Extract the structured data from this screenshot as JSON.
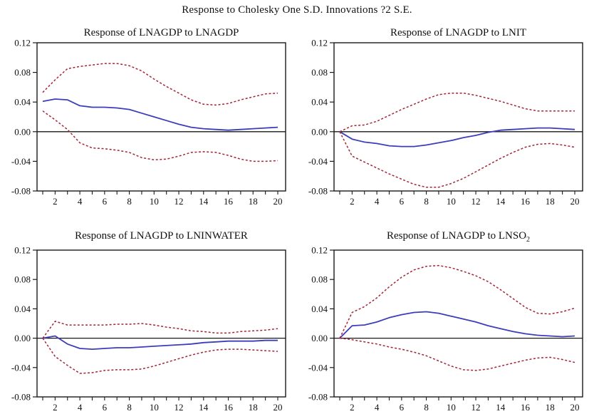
{
  "title": "Response to Cholesky One S.D. Innovations ?2 S.E.",
  "colors": {
    "response_line": "#3d3dbb",
    "band_line": "#a32638",
    "axis": "#1a1a1a",
    "background": "#ffffff"
  },
  "chart_data": [
    {
      "type": "line",
      "title": "Response of LNAGDP to LNAGDP",
      "title_sub": "",
      "x": [
        1,
        2,
        3,
        4,
        5,
        6,
        7,
        8,
        9,
        10,
        11,
        12,
        13,
        14,
        15,
        16,
        17,
        18,
        19,
        20
      ],
      "xticks": [
        2,
        4,
        6,
        8,
        10,
        12,
        14,
        16,
        18,
        20
      ],
      "yticks": [
        "0.12",
        "0.08",
        "0.04",
        "0.00",
        "-0.04",
        "-0.08"
      ],
      "ylim": [
        -0.08,
        0.12
      ],
      "grid": false,
      "legend": "none",
      "series": [
        {
          "name": "response",
          "key": "response-line",
          "style": "solid",
          "color": "#3d3dbb",
          "values": [
            0.041,
            0.044,
            0.043,
            0.035,
            0.033,
            0.033,
            0.032,
            0.03,
            0.025,
            0.02,
            0.015,
            0.01,
            0.006,
            0.004,
            0.003,
            0.002,
            0.003,
            0.004,
            0.005,
            0.006
          ]
        },
        {
          "name": "upper 2 S.E. band",
          "key": "upper-band",
          "style": "dashed",
          "color": "#a32638",
          "values": [
            0.053,
            0.07,
            0.085,
            0.088,
            0.09,
            0.092,
            0.092,
            0.089,
            0.082,
            0.071,
            0.061,
            0.052,
            0.043,
            0.037,
            0.036,
            0.038,
            0.043,
            0.047,
            0.051,
            0.052
          ]
        },
        {
          "name": "lower 2 S.E. band",
          "key": "lower-band",
          "style": "dashed",
          "color": "#a32638",
          "values": [
            0.028,
            0.016,
            0.003,
            -0.015,
            -0.022,
            -0.023,
            -0.025,
            -0.028,
            -0.035,
            -0.038,
            -0.037,
            -0.033,
            -0.028,
            -0.027,
            -0.028,
            -0.032,
            -0.037,
            -0.04,
            -0.04,
            -0.039
          ]
        }
      ]
    },
    {
      "type": "line",
      "title": "Response of LNAGDP to LNIT",
      "title_sub": "",
      "x": [
        1,
        2,
        3,
        4,
        5,
        6,
        7,
        8,
        9,
        10,
        11,
        12,
        13,
        14,
        15,
        16,
        17,
        18,
        19,
        20
      ],
      "xticks": [
        2,
        4,
        6,
        8,
        10,
        12,
        14,
        16,
        18,
        20
      ],
      "yticks": [
        "0.12",
        "0.08",
        "0.04",
        "0.00",
        "-0.04",
        "-0.08"
      ],
      "ylim": [
        -0.08,
        0.12
      ],
      "grid": false,
      "legend": "none",
      "series": [
        {
          "name": "response",
          "key": "response-line",
          "style": "solid",
          "color": "#3d3dbb",
          "values": [
            0.0,
            -0.01,
            -0.014,
            -0.016,
            -0.019,
            -0.02,
            -0.02,
            -0.018,
            -0.015,
            -0.012,
            -0.008,
            -0.005,
            -0.001,
            0.002,
            0.003,
            0.004,
            0.005,
            0.005,
            0.004,
            0.003
          ]
        },
        {
          "name": "upper 2 S.E. band",
          "key": "upper-band",
          "style": "dashed",
          "color": "#a32638",
          "values": [
            0.0,
            0.008,
            0.009,
            0.014,
            0.022,
            0.03,
            0.037,
            0.044,
            0.05,
            0.052,
            0.052,
            0.049,
            0.045,
            0.041,
            0.036,
            0.031,
            0.028,
            0.028,
            0.028,
            0.028
          ]
        },
        {
          "name": "lower 2 S.E. band",
          "key": "lower-band",
          "style": "dashed",
          "color": "#a32638",
          "values": [
            0.0,
            -0.033,
            -0.041,
            -0.049,
            -0.057,
            -0.064,
            -0.071,
            -0.075,
            -0.075,
            -0.07,
            -0.063,
            -0.054,
            -0.045,
            -0.036,
            -0.028,
            -0.021,
            -0.017,
            -0.016,
            -0.018,
            -0.021
          ]
        }
      ]
    },
    {
      "type": "line",
      "title": "Response of LNAGDP to LNINWATER",
      "title_sub": "",
      "x": [
        1,
        2,
        3,
        4,
        5,
        6,
        7,
        8,
        9,
        10,
        11,
        12,
        13,
        14,
        15,
        16,
        17,
        18,
        19,
        20
      ],
      "xticks": [
        2,
        4,
        6,
        8,
        10,
        12,
        14,
        16,
        18,
        20
      ],
      "yticks": [
        "0.12",
        "0.08",
        "0.04",
        "0.00",
        "-0.04",
        "-0.08"
      ],
      "ylim": [
        -0.08,
        0.12
      ],
      "grid": false,
      "legend": "none",
      "series": [
        {
          "name": "response",
          "key": "response-line",
          "style": "solid",
          "color": "#3d3dbb",
          "values": [
            0.0,
            0.003,
            -0.008,
            -0.014,
            -0.015,
            -0.014,
            -0.013,
            -0.013,
            -0.012,
            -0.011,
            -0.01,
            -0.009,
            -0.008,
            -0.006,
            -0.005,
            -0.004,
            -0.004,
            -0.004,
            -0.003,
            -0.003
          ]
        },
        {
          "name": "upper 2 S.E. band",
          "key": "upper-band",
          "style": "dashed",
          "color": "#a32638",
          "values": [
            0.0,
            0.023,
            0.018,
            0.018,
            0.018,
            0.018,
            0.019,
            0.019,
            0.02,
            0.018,
            0.015,
            0.013,
            0.01,
            0.009,
            0.007,
            0.007,
            0.009,
            0.01,
            0.011,
            0.013
          ]
        },
        {
          "name": "lower 2 S.E. band",
          "key": "lower-band",
          "style": "dashed",
          "color": "#a32638",
          "values": [
            0.0,
            -0.025,
            -0.037,
            -0.048,
            -0.047,
            -0.044,
            -0.043,
            -0.043,
            -0.042,
            -0.038,
            -0.033,
            -0.028,
            -0.023,
            -0.019,
            -0.016,
            -0.015,
            -0.015,
            -0.016,
            -0.017,
            -0.018
          ]
        }
      ]
    },
    {
      "type": "line",
      "title": "Response of LNAGDP to LNSO",
      "title_sub": "2",
      "x": [
        1,
        2,
        3,
        4,
        5,
        6,
        7,
        8,
        9,
        10,
        11,
        12,
        13,
        14,
        15,
        16,
        17,
        18,
        19,
        20
      ],
      "xticks": [
        2,
        4,
        6,
        8,
        10,
        12,
        14,
        16,
        18,
        20
      ],
      "yticks": [
        "0.12",
        "0.08",
        "0.04",
        "0.00",
        "-0.04",
        "-0.08"
      ],
      "ylim": [
        -0.08,
        0.12
      ],
      "grid": false,
      "legend": "none",
      "series": [
        {
          "name": "response",
          "key": "response-line",
          "style": "solid",
          "color": "#3d3dbb",
          "values": [
            0.0,
            0.017,
            0.018,
            0.022,
            0.028,
            0.032,
            0.035,
            0.036,
            0.034,
            0.03,
            0.026,
            0.022,
            0.017,
            0.013,
            0.009,
            0.006,
            0.004,
            0.003,
            0.002,
            0.003
          ]
        },
        {
          "name": "upper 2 S.E. band",
          "key": "upper-band",
          "style": "dashed",
          "color": "#a32638",
          "values": [
            0.0,
            0.035,
            0.043,
            0.055,
            0.07,
            0.083,
            0.093,
            0.098,
            0.099,
            0.096,
            0.091,
            0.085,
            0.077,
            0.066,
            0.054,
            0.042,
            0.034,
            0.033,
            0.036,
            0.041
          ]
        },
        {
          "name": "lower 2 S.E. band",
          "key": "lower-band",
          "style": "dashed",
          "color": "#a32638",
          "values": [
            0.0,
            -0.002,
            -0.005,
            -0.008,
            -0.012,
            -0.015,
            -0.019,
            -0.024,
            -0.031,
            -0.038,
            -0.043,
            -0.044,
            -0.042,
            -0.038,
            -0.034,
            -0.03,
            -0.027,
            -0.026,
            -0.029,
            -0.033
          ]
        }
      ]
    }
  ]
}
